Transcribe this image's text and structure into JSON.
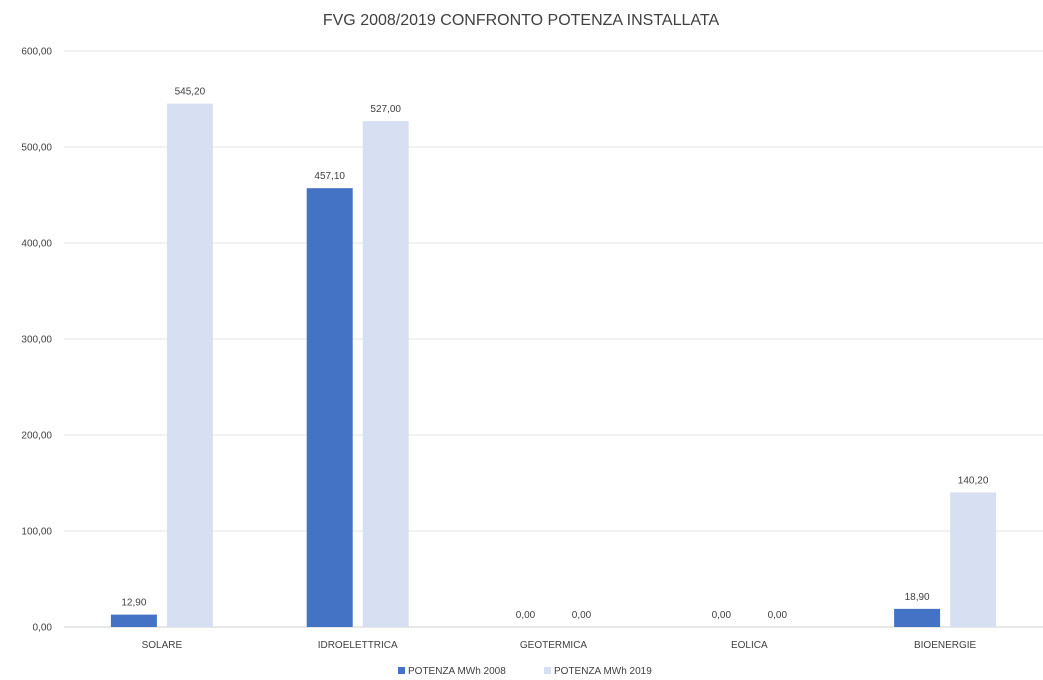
{
  "chart_data": {
    "type": "bar",
    "title": "FVG 2008/2019 CONFRONTO POTENZA INSTALLATA",
    "categories": [
      "SOLARE",
      "IDROELETTRICA",
      "GEOTERMICA",
      "EOLICA",
      "BIOENERGIE"
    ],
    "series": [
      {
        "name": "POTENZA MWh 2008",
        "values": [
          12.9,
          457.1,
          0,
          0,
          18.9
        ],
        "labels": [
          "12,90",
          "457,10",
          "0,00",
          "0,00",
          "18,90"
        ],
        "color": "#4472C4"
      },
      {
        "name": "POTENZA MWh 2019",
        "values": [
          545.2,
          527.0,
          0,
          0,
          140.2
        ],
        "labels": [
          "545,20",
          "527,00",
          "0,00",
          "0,00",
          "140,20"
        ],
        "color": "#D6E0F2"
      }
    ],
    "ylim": [
      0,
      600
    ],
    "yticks": [
      0,
      100,
      200,
      300,
      400,
      500,
      600
    ],
    "ytick_labels": [
      "0,00",
      "100,00",
      "200,00",
      "300,00",
      "400,00",
      "500,00",
      "600,00"
    ],
    "grid": true,
    "legend_position": "bottom"
  }
}
